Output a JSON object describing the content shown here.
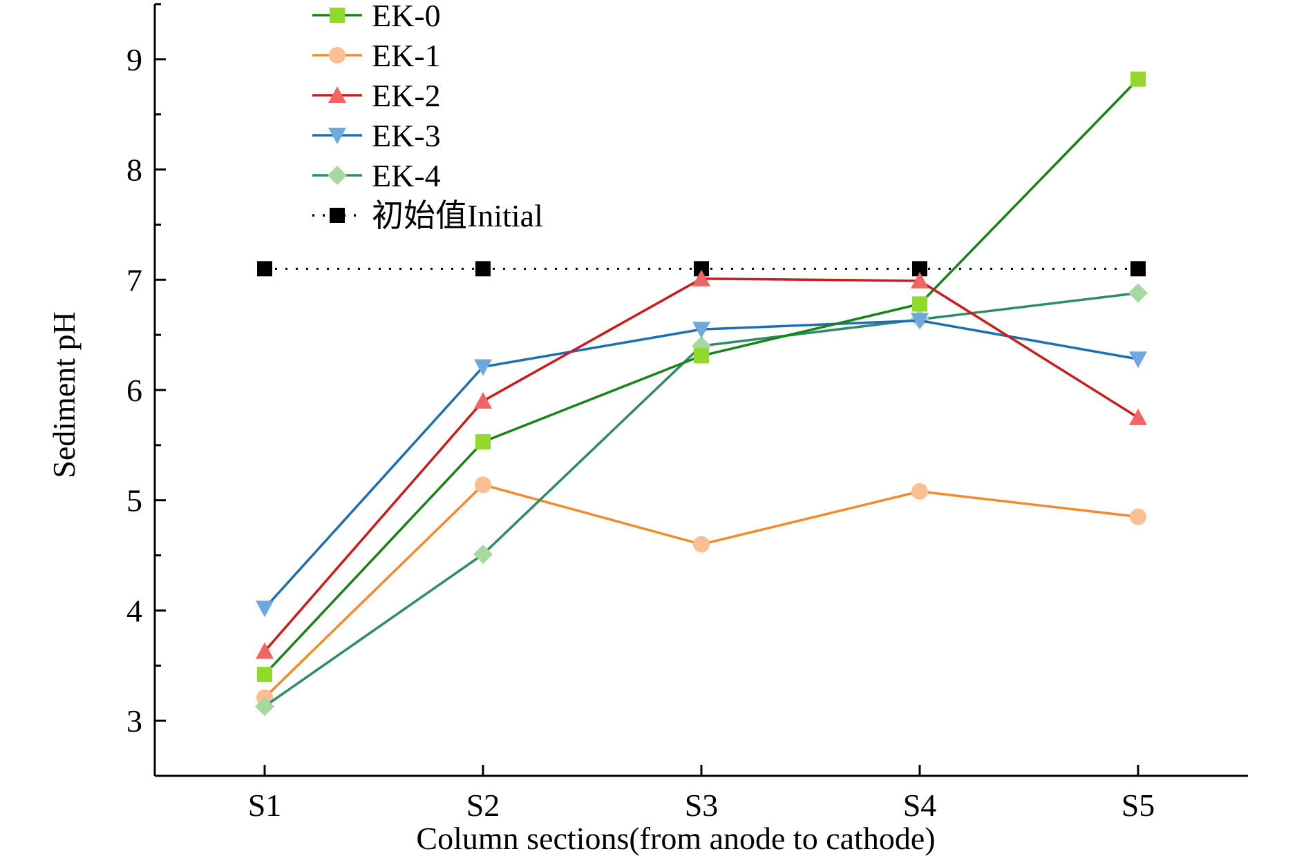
{
  "chart_data": {
    "type": "line",
    "categories": [
      "S1",
      "S2",
      "S3",
      "S4",
      "S5"
    ],
    "xlabel": "Column sections(from anode to cathode)",
    "ylabel": "Sediment pH",
    "ylim": [
      2.5,
      9.5
    ],
    "yticks": [
      3,
      4,
      5,
      6,
      7,
      8,
      9
    ],
    "grid": false,
    "legend_position": "top-left",
    "series": [
      {
        "name": "EK-0",
        "values": [
          3.42,
          5.53,
          6.31,
          6.78,
          8.82
        ],
        "line_color": "#168416",
        "marker": "square",
        "marker_color": "#92d92b"
      },
      {
        "name": "EK-1",
        "values": [
          3.21,
          5.14,
          4.6,
          5.08,
          4.85
        ],
        "line_color": "#f58a2b",
        "marker": "circle",
        "marker_color": "#fbbf95"
      },
      {
        "name": "EK-2",
        "values": [
          3.63,
          5.9,
          7.01,
          6.99,
          5.75
        ],
        "line_color": "#cc1b1b",
        "marker": "triangle-up",
        "marker_color": "#f06463"
      },
      {
        "name": "EK-3",
        "values": [
          4.02,
          6.21,
          6.55,
          6.63,
          6.28
        ],
        "line_color": "#1c6fb4",
        "marker": "triangle-down",
        "marker_color": "#6fa8dc"
      },
      {
        "name": "EK-4",
        "values": [
          3.13,
          4.51,
          6.4,
          6.64,
          6.88
        ],
        "line_color": "#2e8b68",
        "marker": "diamond",
        "marker_color": "#a6d9a0"
      },
      {
        "name": "初始值Initial",
        "values": [
          7.1,
          7.1,
          7.1,
          7.1,
          7.1
        ],
        "line_color": "#000000",
        "line_style": "dotted",
        "marker": "square",
        "marker_color": "#000000"
      }
    ]
  }
}
